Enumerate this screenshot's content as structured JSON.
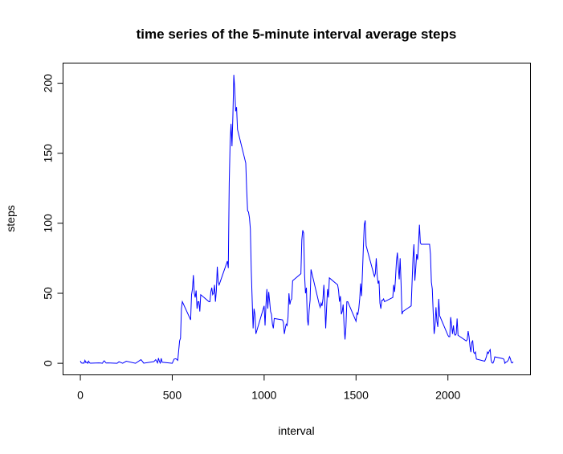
{
  "chart_data": {
    "type": "line",
    "title": "time series of the 5-minute interval average steps",
    "x_label": "interval",
    "y_label": "steps",
    "color": "#0000ff",
    "x": [
      0,
      5,
      10,
      15,
      20,
      25,
      30,
      35,
      40,
      45,
      50,
      55,
      100,
      110,
      120,
      125,
      130,
      140,
      150,
      200,
      210,
      230,
      250,
      300,
      330,
      345,
      400,
      410,
      420,
      425,
      430,
      435,
      440,
      445,
      500,
      510,
      520,
      530,
      540,
      545,
      550,
      555,
      600,
      605,
      610,
      615,
      620,
      625,
      630,
      635,
      640,
      645,
      650,
      655,
      700,
      705,
      710,
      715,
      720,
      725,
      730,
      735,
      740,
      745,
      750,
      755,
      800,
      805,
      810,
      815,
      820,
      825,
      830,
      835,
      840,
      845,
      850,
      855,
      900,
      905,
      910,
      915,
      920,
      925,
      930,
      935,
      940,
      945,
      950,
      955,
      1000,
      1005,
      1010,
      1015,
      1020,
      1025,
      1030,
      1035,
      1040,
      1045,
      1050,
      1055,
      1100,
      1105,
      1110,
      1115,
      1120,
      1125,
      1130,
      1135,
      1140,
      1145,
      1150,
      1155,
      1200,
      1205,
      1210,
      1215,
      1220,
      1225,
      1230,
      1235,
      1240,
      1245,
      1250,
      1255,
      1300,
      1305,
      1310,
      1315,
      1320,
      1325,
      1330,
      1335,
      1340,
      1345,
      1350,
      1355,
      1400,
      1405,
      1410,
      1415,
      1420,
      1425,
      1430,
      1435,
      1440,
      1445,
      1450,
      1455,
      1500,
      1505,
      1510,
      1515,
      1520,
      1525,
      1530,
      1535,
      1540,
      1545,
      1550,
      1555,
      1600,
      1605,
      1610,
      1615,
      1620,
      1625,
      1630,
      1635,
      1640,
      1645,
      1650,
      1655,
      1700,
      1705,
      1710,
      1715,
      1720,
      1725,
      1730,
      1735,
      1740,
      1745,
      1750,
      1755,
      1800,
      1805,
      1810,
      1815,
      1820,
      1825,
      1830,
      1835,
      1840,
      1845,
      1850,
      1855,
      1900,
      1905,
      1910,
      1915,
      1920,
      1925,
      1930,
      1935,
      1940,
      1945,
      1950,
      1955,
      2000,
      2005,
      2010,
      2015,
      2020,
      2025,
      2030,
      2035,
      2040,
      2045,
      2050,
      2055,
      2100,
      2105,
      2110,
      2115,
      2120,
      2125,
      2130,
      2135,
      2140,
      2145,
      2150,
      2155,
      2200,
      2205,
      2210,
      2215,
      2220,
      2225,
      2230,
      2235,
      2240,
      2245,
      2250,
      2255,
      2300,
      2305,
      2310,
      2315,
      2320,
      2325,
      2330,
      2335,
      2340,
      2345,
      2350,
      2355
    ],
    "values": [
      1.7,
      0.3,
      0.1,
      0.2,
      0.1,
      2.1,
      0.5,
      0.9,
      0,
      1.5,
      0.3,
      0.1,
      0.3,
      0.2,
      0,
      1.1,
      1.8,
      0.2,
      0.3,
      0,
      1.1,
      0,
      1.5,
      0,
      2.6,
      0.1,
      1.2,
      2.6,
      0.3,
      3.7,
      1.3,
      0.2,
      3.5,
      0.8,
      0,
      3,
      3.3,
      2.1,
      16,
      18,
      39,
      44,
      31,
      49,
      53,
      63,
      50,
      47,
      52,
      39,
      44,
      44,
      37,
      49,
      44,
      44,
      51,
      54,
      49,
      50,
      56,
      44,
      52,
      69,
      58,
      56,
      73,
      68,
      129,
      158,
      171,
      155,
      177,
      206,
      196,
      180,
      183,
      167,
      143,
      124,
      109,
      108,
      104,
      96,
      66,
      45,
      25,
      39,
      35,
      21,
      41,
      27,
      42,
      53,
      39,
      51,
      44,
      37,
      35,
      28,
      25,
      32,
      31,
      29,
      21,
      25,
      28,
      27,
      33,
      50,
      42,
      45,
      46,
      59,
      64,
      88,
      95,
      93,
      63,
      50,
      54,
      32,
      27,
      38,
      45,
      67,
      42,
      40,
      43,
      41,
      46,
      56,
      43,
      25,
      40,
      53,
      47,
      61,
      56,
      52,
      44,
      48,
      35,
      37,
      42,
      27,
      17,
      26,
      44,
      44,
      30,
      36,
      35,
      39,
      46,
      57,
      48,
      65,
      83,
      99,
      102,
      84,
      62,
      64,
      75,
      63,
      57,
      59,
      43,
      39,
      45,
      45,
      46,
      44,
      47,
      56,
      51,
      61,
      73,
      79,
      69,
      60,
      75,
      57,
      35,
      37,
      41,
      58,
      75,
      85,
      59,
      68,
      78,
      74,
      85,
      99,
      86,
      85,
      85,
      78,
      58,
      53,
      36,
      21,
      27,
      40,
      30,
      26,
      46,
      34,
      20,
      19,
      19,
      33,
      27,
      21,
      27,
      21,
      20,
      21,
      32,
      20,
      16,
      17,
      23,
      19,
      12,
      8,
      15,
      16,
      8,
      7,
      8,
      3,
      1.5,
      3,
      5,
      8,
      7,
      8.7,
      9.8,
      2.2,
      0.3,
      0.1,
      1.6,
      4.6,
      3.3,
      2.8,
      0,
      0.8,
      1,
      1.6,
      2.6,
      4.7,
      3.3,
      0.6,
      0.2,
      1.1
    ],
    "xlim": [
      -94.2,
      2449.2
    ],
    "xticks": [
      0,
      500,
      1000,
      1500,
      2000
    ],
    "ylim": [
      -8.25,
      214.4
    ],
    "yticks": [
      0,
      50,
      100,
      150,
      200
    ]
  }
}
